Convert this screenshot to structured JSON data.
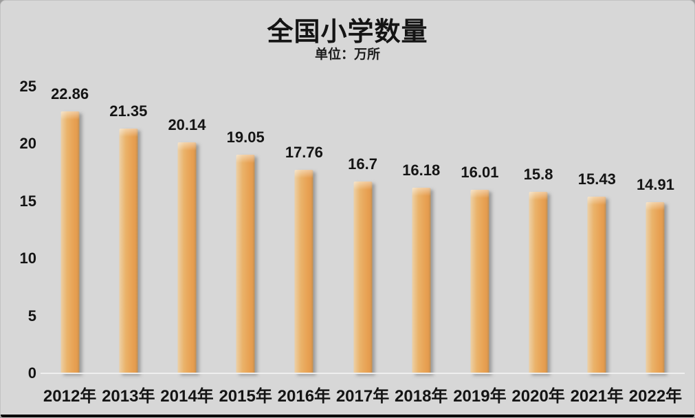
{
  "frame": {
    "background_color": "#d7d7d7",
    "bottom_edge_color": "#000000"
  },
  "chart_data": {
    "type": "bar",
    "title": "全国小学数量",
    "subtitle": "单位：万所",
    "xlabel": "",
    "ylabel": "",
    "categories": [
      "2012年",
      "2013年",
      "2014年",
      "2015年",
      "2016年",
      "2017年",
      "2018年",
      "2019年",
      "2020年",
      "2021年",
      "2022年"
    ],
    "values": [
      22.86,
      21.35,
      20.14,
      19.05,
      17.76,
      16.7,
      16.18,
      16.01,
      15.8,
      15.43,
      14.91
    ],
    "data_labels": [
      "22.86",
      "21.35",
      "20.14",
      "19.05",
      "17.76",
      "16.7",
      "16.18",
      "16.01",
      "15.8",
      "15.43",
      "14.91"
    ],
    "ylim": [
      0,
      25
    ],
    "yticks": [
      25,
      20,
      15,
      10,
      5,
      0
    ],
    "grid": false,
    "legend_position": "none",
    "bar_color_light": "#ecd0a6",
    "bar_color_main": "#e8a254",
    "bar_color_dark": "#c28f52",
    "text_color": "#141414",
    "baseline_color": "#efefef"
  }
}
